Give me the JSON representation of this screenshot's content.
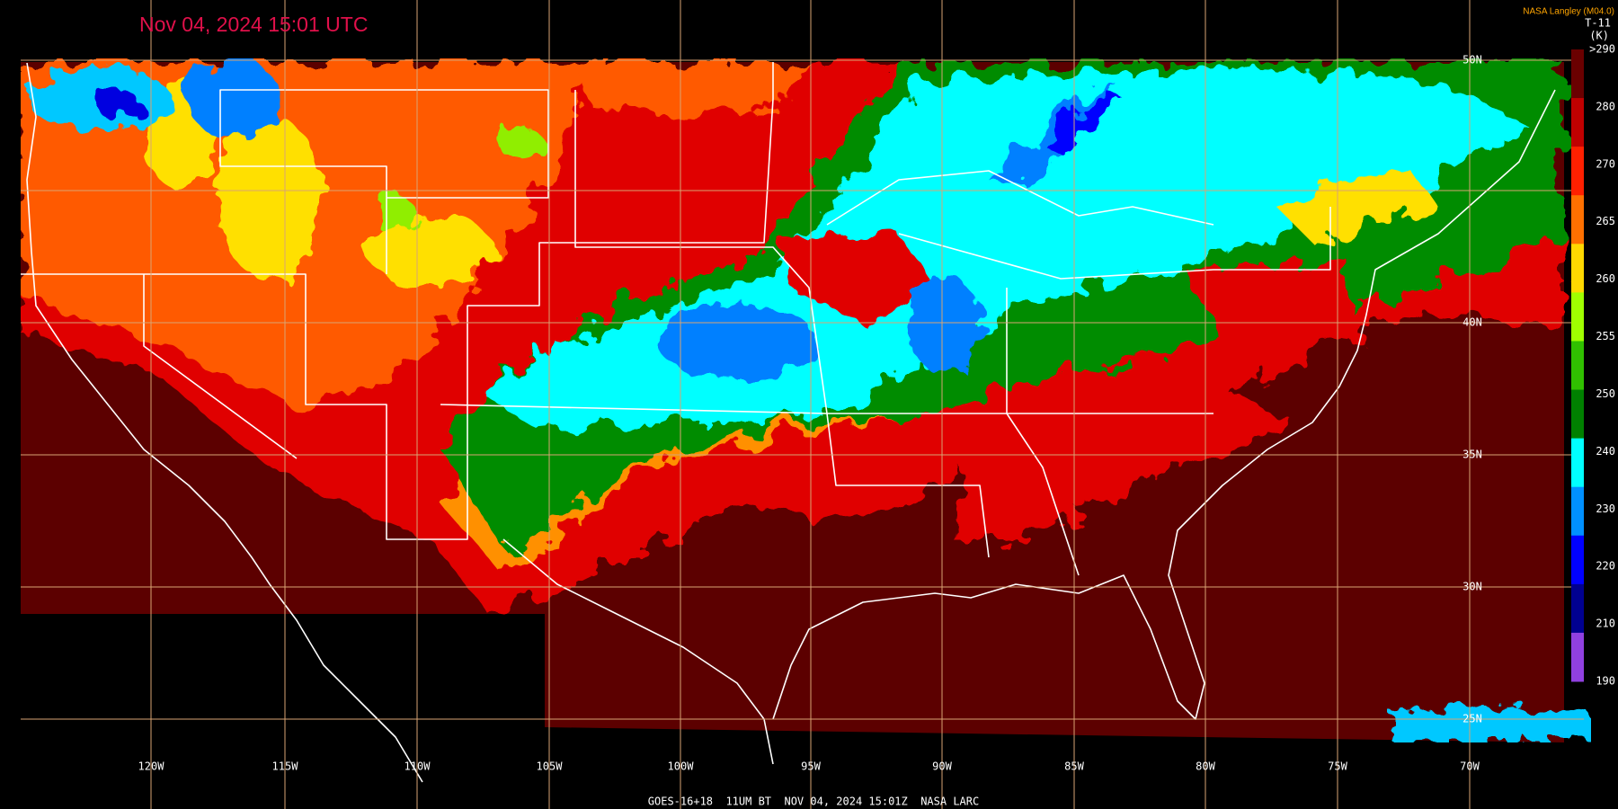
{
  "header": {
    "title": "Nov 04, 2024 15:01 UTC",
    "credit": "NASA Langley (M04.0)",
    "product": "T-11",
    "unit": "(K)"
  },
  "colorbar": {
    "labels": [
      ">290",
      "280",
      "270",
      "265",
      "260",
      "255",
      "250",
      "240",
      "230",
      "220",
      "210",
      "190"
    ]
  },
  "longitude_labels": [
    "120W",
    "115W",
    "110W",
    "105W",
    "100W",
    "95W",
    "90W",
    "85W",
    "80W",
    "75W",
    "70W"
  ],
  "latitude_labels": [
    "50N",
    "40N",
    "35N",
    "30N",
    "25N"
  ],
  "footer": "GOES-16+18  11UM BT  NOV 04, 2024 15:01Z  NASA LARC"
}
